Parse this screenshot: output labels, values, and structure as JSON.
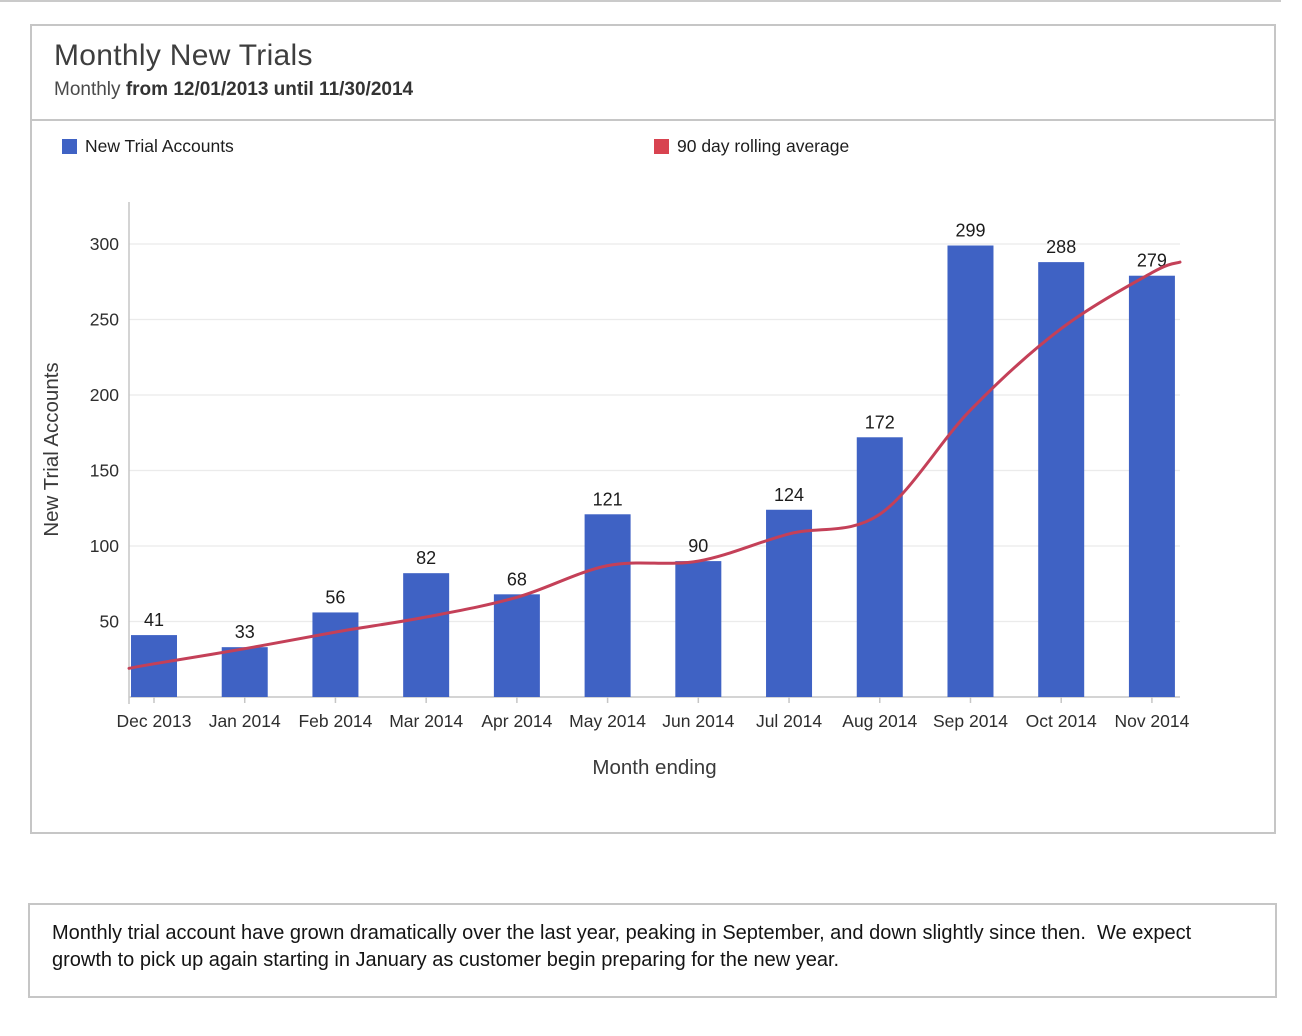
{
  "card": {
    "title": "Monthly New Trials",
    "subtitle_prefix": "Monthly ",
    "subtitle_rest": "from 12/01/2013 until 11/30/2014"
  },
  "legend": {
    "items": [
      {
        "label": "New Trial Accounts",
        "color": "#3f62c4"
      },
      {
        "label": "90 day rolling average",
        "color": "#d84350"
      }
    ]
  },
  "chart_data": {
    "type": "bar",
    "title": "Monthly New Trials",
    "subtitle": "Monthly from 12/01/2013 until 11/30/2014",
    "categories": [
      "Dec 2013",
      "Jan 2014",
      "Feb 2014",
      "Mar 2014",
      "Apr 2014",
      "May 2014",
      "Jun 2014",
      "Jul 2014",
      "Aug 2014",
      "Sep 2014",
      "Oct 2014",
      "Nov 2014"
    ],
    "series": [
      {
        "name": "New Trial Accounts",
        "type": "bar",
        "color": "#3f62c4",
        "values": [
          41,
          33,
          56,
          82,
          68,
          121,
          90,
          124,
          172,
          299,
          288,
          279
        ]
      },
      {
        "name": "90 day rolling average",
        "type": "line",
        "color": "#c44058",
        "values": [
          22,
          32,
          43,
          53,
          66,
          87,
          90,
          108,
          121,
          190,
          244,
          281
        ],
        "edge_start": 19,
        "edge_end": 288
      }
    ],
    "xlabel": "Month ending",
    "ylabel": "New Trial Accounts",
    "yticks": [
      50,
      100,
      150,
      200,
      250,
      300
    ],
    "ylim": [
      0,
      325
    ],
    "grid": true,
    "legend_position": "top"
  },
  "caption": {
    "text": "Monthly trial account have grown dramatically over the last year, peaking in September, and down slightly since then.  We expect growth to pick up again starting in January as customer begin preparing for the new year."
  }
}
